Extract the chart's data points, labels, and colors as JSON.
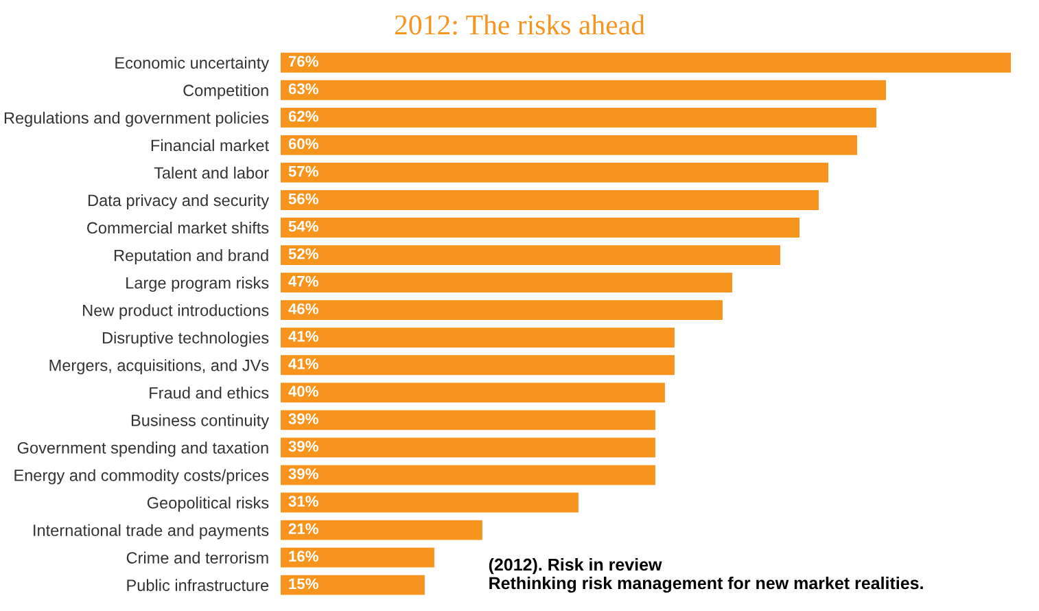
{
  "chart_data": {
    "type": "bar",
    "orientation": "horizontal",
    "title": "2012: The risks ahead",
    "categories": [
      "Economic uncertainty",
      "Competition",
      "Regulations and government policies",
      "Financial market",
      "Talent and labor",
      "Data privacy and security",
      "Commercial market shifts",
      "Reputation and brand",
      "Large program risks",
      "New product introductions",
      "Disruptive technologies",
      "Mergers, acquisitions, and JVs",
      "Fraud and ethics",
      "Business continuity",
      "Government spending and taxation",
      "Energy and commodity costs/prices",
      "Geopolitical risks",
      "International trade and payments",
      "Crime and terrorism",
      "Public infrastructure"
    ],
    "values": [
      76,
      63,
      62,
      60,
      57,
      56,
      54,
      52,
      47,
      46,
      41,
      41,
      40,
      39,
      39,
      39,
      31,
      21,
      16,
      15
    ],
    "value_labels": [
      "76%",
      "63%",
      "62%",
      "60%",
      "57%",
      "56%",
      "54%",
      "52%",
      "47%",
      "46%",
      "41%",
      "41%",
      "40%",
      "39%",
      "39%",
      "39%",
      "31%",
      "21%",
      "16%",
      "15%"
    ],
    "color": "#f7941d",
    "annotations": [
      "(2012). Risk in review\nRethinking risk management for new market realities."
    ]
  }
}
